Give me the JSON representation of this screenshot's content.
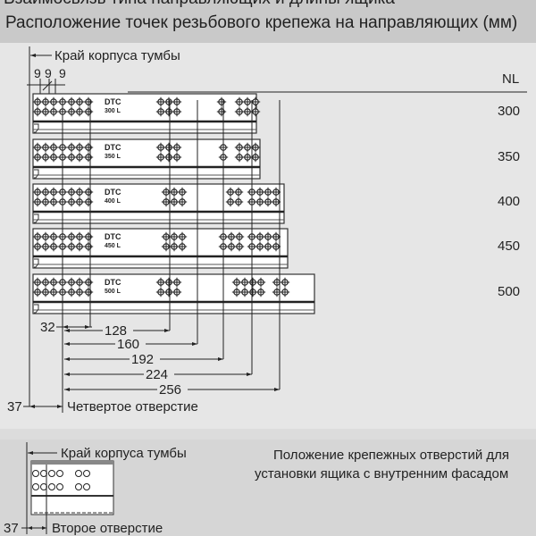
{
  "header": {
    "cut_title": "Взаимосвязь типа направляющих и длины ящика",
    "title": "Расположение точек резьбового крепежа на направляющих (мм)"
  },
  "main_drawing": {
    "cabinet_edge_label": "Край корпуса тумбы",
    "top_dims": [
      "9",
      "9",
      "9"
    ],
    "nl_label": "NL",
    "rails": [
      {
        "nl": "300",
        "brand": "DTC",
        "model": "300 L"
      },
      {
        "nl": "350",
        "brand": "DTC",
        "model": "350 L"
      },
      {
        "nl": "400",
        "brand": "DTC",
        "model": "400 L"
      },
      {
        "nl": "450",
        "brand": "DTC",
        "model": "450 L"
      },
      {
        "nl": "500",
        "brand": "DTC",
        "model": "500 L"
      }
    ],
    "dimensions": [
      "32",
      "128",
      "160",
      "192",
      "224",
      "256"
    ],
    "offset_dim": "37",
    "fourth_hole_label": "Четвертое отверстие"
  },
  "inner_facade": {
    "cabinet_edge_label": "Край корпуса тумбы",
    "offset_dim": "37",
    "second_hole_label": "Второе отверстие",
    "caption_line1": "Положение крепежных отверстий для",
    "caption_line2": "установки ящика с внутренним фасадом"
  }
}
